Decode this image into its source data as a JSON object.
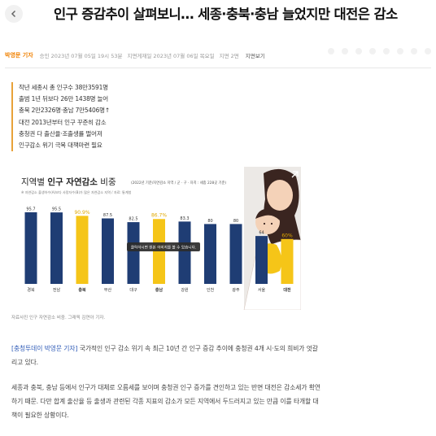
{
  "header": {
    "headline": "인구 증감추이 살펴보니… 세종·충북·충남 늘었지만 대전은 감소"
  },
  "meta": {
    "reporter": "박영문 기자",
    "published": "승인 2023년 07월 05일 19시 53분",
    "updated": "지면게재일 2023년 07월 06일 목요일",
    "page": "지면 2면",
    "view_page": "지면보기"
  },
  "summary": [
    "작년 세종시 총 인구수 38만3591명",
    "출범 1년 뒤보다 26만 1438명 늘어",
    "충북 2만2326명·충남 7만5406명↑",
    "대전 2013년부터 인구 꾸준히 감소",
    "충청권 다 출산율·조출생률 떨어져",
    "인구감소 위기 극복 대책마련 필요"
  ],
  "chart_data": {
    "type": "bar",
    "title_prefix": "지역별 ",
    "title_bold": "인구 자연감소",
    "title_suffix": " 비중",
    "title_note": "(2022년 기준/자연감소 지역 / 군 · 구 · 자치 : 세종 228곳 기준)",
    "subnote": "※ 자연감소 출생아수(A)보다 사망자수(B)가 많은 자연감소 지역 / 자료: 통계청",
    "categories": [
      "경북",
      "전남",
      "충북",
      "부산",
      "대구",
      "충남",
      "강원",
      "인천",
      "광주",
      "서울",
      "대전"
    ],
    "value_labels": [
      "95.7",
      "95.5",
      "90.9%",
      "87.5",
      "82.5",
      "86.7%",
      "83.3",
      "80",
      "80",
      "64",
      "60%"
    ],
    "values": [
      95.7,
      95.5,
      90.9,
      87.5,
      82.5,
      86.7,
      83.3,
      80,
      80,
      64,
      60
    ],
    "highlighted": [
      "충북",
      "충남",
      "대전"
    ],
    "ylim": [
      0,
      100
    ],
    "overlay_text": "클릭하시면 원본 이미지를 볼 수 있습니다.",
    "colors": {
      "base": "#1f3d74",
      "highlight": "#f5c518",
      "background": "#e9e6e3"
    }
  },
  "figure": {
    "caption": "자료사진 인구 자연감소 비중. 그래픽 김연아 기자."
  },
  "article": {
    "p1_lead": "[충청투데이 박영문 기자]",
    "p1_rest": " 국가적인 인구 감소 위기 속 최근 10년 간 인구 증감 추이에 충청권 4개 시·도의 희비가 엇갈리고 있다.",
    "p2": "세종과 충북, 충남 등에서 인구가 대체로 오름세를 보이며 충청권 인구 증가를 견인하고 있는 반면 대전은 감소세가 확연하기 때문. 다만 합계 출산율 등 출생과 관련된 각종 지표의 감소가 모든 지역에서 두드러지고 있는 만큼 이를 타개할 대책이 필요한 상황이다."
  },
  "icons": {
    "back": "chevron-left-icon",
    "expand": "expand-icon",
    "share": [
      "font-size-icon",
      "print-icon",
      "share-icon",
      "bookmark-icon",
      "facebook-icon",
      "twitter-icon",
      "link-icon",
      "more-icon"
    ]
  }
}
